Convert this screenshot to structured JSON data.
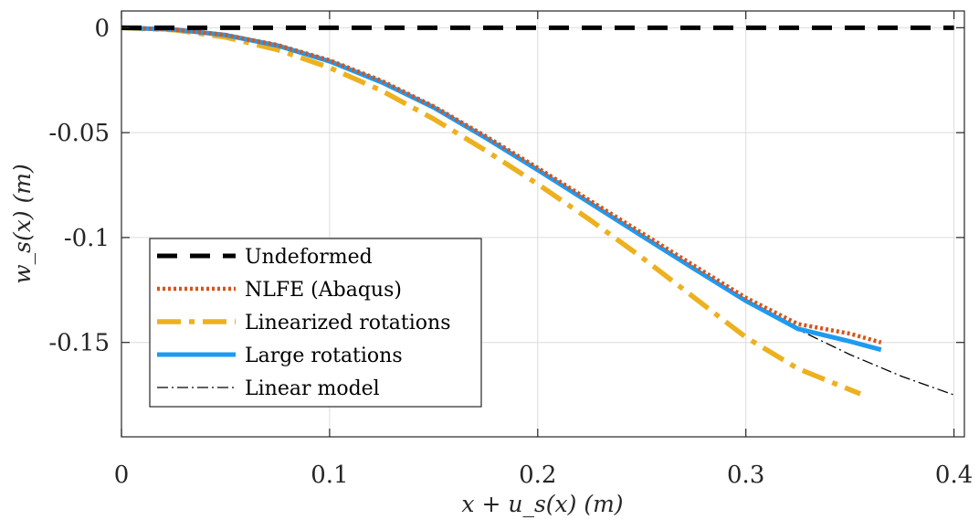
{
  "chart_data": {
    "type": "line",
    "xlabel": "x + u_s(x) (m)",
    "ylabel": "w_s(x) (m)",
    "xlim": [
      0,
      0.405
    ],
    "ylim": [
      -0.195,
      0.008
    ],
    "xticks": [
      0,
      0.1,
      0.2,
      0.3,
      0.4
    ],
    "xtick_labels": [
      "0",
      "0.1",
      "0.2",
      "0.3",
      "0.4"
    ],
    "yticks": [
      0,
      -0.05,
      -0.1,
      -0.15
    ],
    "ytick_labels": [
      "0",
      "-0.05",
      "-0.1",
      "-0.15"
    ],
    "grid": true,
    "legend_position": "bottom-left",
    "series": [
      {
        "name": "Undeformed",
        "color": "#000000",
        "style": "dashed",
        "x": [
          0,
          0.4
        ],
        "y": [
          0,
          0
        ]
      },
      {
        "name": "NLFE (Abaqus)",
        "color": "#d95319",
        "style": "dotted",
        "x": [
          0,
          0.025,
          0.05,
          0.075,
          0.1,
          0.125,
          0.15,
          0.175,
          0.2,
          0.225,
          0.25,
          0.275,
          0.3,
          0.325,
          0.35,
          0.365
        ],
        "y": [
          0,
          -0.0008,
          -0.0034,
          -0.0082,
          -0.0155,
          -0.0253,
          -0.0375,
          -0.0517,
          -0.0668,
          -0.0823,
          -0.0978,
          -0.1133,
          -0.1287,
          -0.1412,
          -0.1458,
          -0.15
        ]
      },
      {
        "name": "Linearized rotations",
        "color": "#edb120",
        "style": "dashdot",
        "x": [
          0,
          0.025,
          0.05,
          0.075,
          0.1,
          0.125,
          0.15,
          0.175,
          0.2,
          0.225,
          0.25,
          0.275,
          0.3,
          0.325,
          0.355
        ],
        "y": [
          0,
          -0.001,
          -0.0045,
          -0.0105,
          -0.019,
          -0.03,
          -0.0435,
          -0.0585,
          -0.0745,
          -0.0915,
          -0.1095,
          -0.1285,
          -0.1475,
          -0.1625,
          -0.1745
        ]
      },
      {
        "name": "Large rotations",
        "color": "#1e9bf0",
        "style": "solid",
        "x": [
          0,
          0.025,
          0.05,
          0.075,
          0.1,
          0.125,
          0.15,
          0.175,
          0.2,
          0.225,
          0.25,
          0.275,
          0.3,
          0.325,
          0.35,
          0.365
        ],
        "y": [
          0,
          -0.0008,
          -0.0035,
          -0.0085,
          -0.016,
          -0.026,
          -0.038,
          -0.0525,
          -0.0678,
          -0.0835,
          -0.0992,
          -0.1148,
          -0.1302,
          -0.1435,
          -0.1495,
          -0.1535
        ]
      },
      {
        "name": "Linear model",
        "color": "#000000",
        "style": "thin-dashdot",
        "x": [
          0,
          0.025,
          0.05,
          0.075,
          0.1,
          0.125,
          0.15,
          0.175,
          0.2,
          0.225,
          0.25,
          0.275,
          0.3,
          0.325,
          0.35,
          0.375,
          0.4
        ],
        "y": [
          0,
          -0.0008,
          -0.0036,
          -0.0086,
          -0.016,
          -0.026,
          -0.0382,
          -0.0525,
          -0.068,
          -0.0838,
          -0.0995,
          -0.115,
          -0.1302,
          -0.1438,
          -0.1558,
          -0.1662,
          -0.175
        ]
      }
    ]
  }
}
